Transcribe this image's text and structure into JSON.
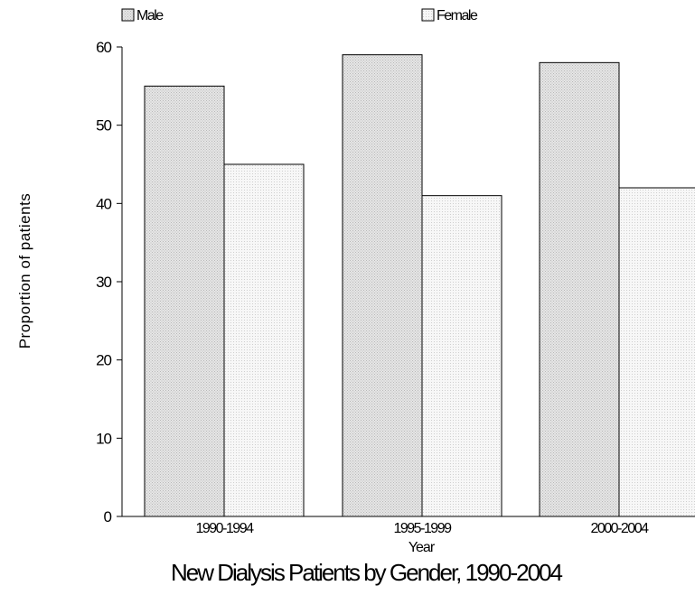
{
  "chart_data": {
    "type": "bar",
    "title": "New Dialysis Patients by Gender, 1990-2004",
    "xlabel": "Year",
    "ylabel": "Proportion of patients",
    "categories": [
      "1990-1994",
      "1995-1999",
      "2000-2004"
    ],
    "series": [
      {
        "name": "Male",
        "values": [
          55,
          59,
          58
        ]
      },
      {
        "name": "Female",
        "values": [
          45,
          41,
          42
        ]
      }
    ],
    "ylim": [
      0,
      60
    ],
    "yticks": [
      0,
      10,
      20,
      30,
      40,
      50,
      60
    ],
    "grid": false,
    "legend_position": "top",
    "colors": {
      "Male": "#dedede",
      "Female": "#f2f2f2",
      "outline": "#000000"
    }
  }
}
